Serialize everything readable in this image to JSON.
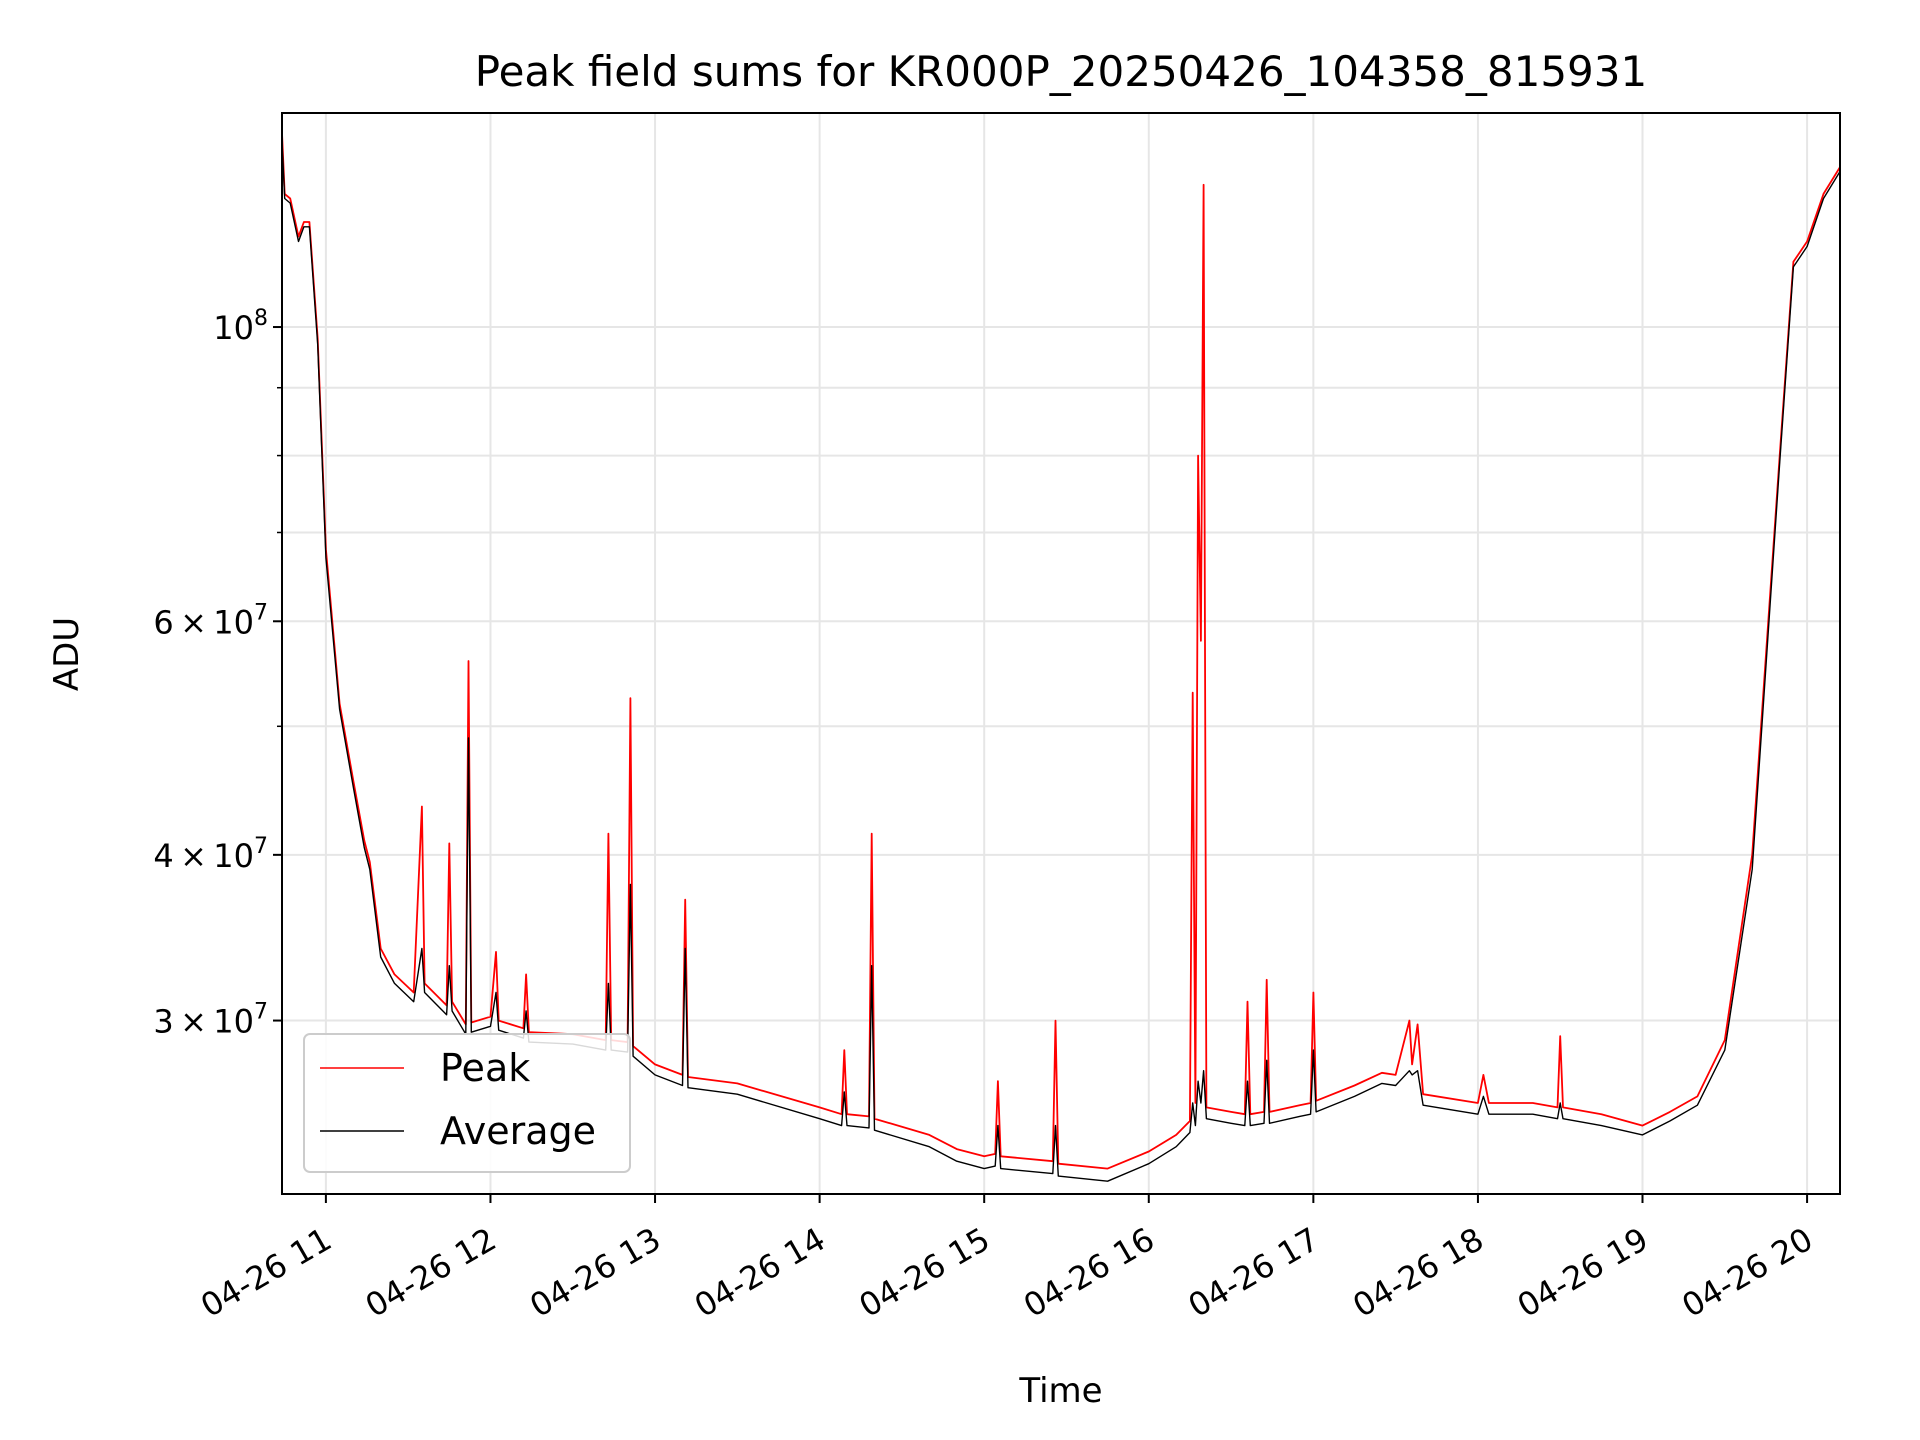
{
  "chart_data": {
    "type": "line",
    "title": "Peak field sums for KR000P_20250426_104358_815931",
    "xlabel": "Time",
    "ylabel": "ADU",
    "yscale": "log",
    "ylim": [
      22200000,
      145000000
    ],
    "xlim": [
      "2025-04-26 10:44",
      "2025-04-26 20:12"
    ],
    "grid": true,
    "legend_position": "lower-left",
    "x_ticks": [
      {
        "value": "2025-04-26 11:00",
        "label": "04-26 11"
      },
      {
        "value": "2025-04-26 12:00",
        "label": "04-26 12"
      },
      {
        "value": "2025-04-26 13:00",
        "label": "04-26 13"
      },
      {
        "value": "2025-04-26 14:00",
        "label": "04-26 14"
      },
      {
        "value": "2025-04-26 15:00",
        "label": "04-26 15"
      },
      {
        "value": "2025-04-26 16:00",
        "label": "04-26 16"
      },
      {
        "value": "2025-04-26 17:00",
        "label": "04-26 17"
      },
      {
        "value": "2025-04-26 18:00",
        "label": "04-26 18"
      },
      {
        "value": "2025-04-26 19:00",
        "label": "04-26 19"
      },
      {
        "value": "2025-04-26 20:00",
        "label": "04-26 20"
      }
    ],
    "y_ticks": [
      {
        "value": 30000000,
        "mantissa": "3",
        "times": "×",
        "base": "10",
        "exponent": "7"
      },
      {
        "value": 40000000,
        "mantissa": "4",
        "times": "×",
        "base": "10",
        "exponent": "7"
      },
      {
        "value": 60000000,
        "mantissa": "6",
        "times": "×",
        "base": "10",
        "exponent": "7"
      },
      {
        "value": 100000000,
        "mantissa": "",
        "times": "",
        "base": "10",
        "exponent": "8"
      }
    ],
    "y_minor_ticks": [
      50000000,
      70000000,
      80000000,
      90000000
    ],
    "series": [
      {
        "name": "Peak",
        "color": "#ff0000",
        "points": [
          [
            "2025-04-26 10:44",
            140000000
          ],
          [
            "2025-04-26 10:45",
            126000000
          ],
          [
            "2025-04-26 10:47",
            125000000
          ],
          [
            "2025-04-26 10:50",
            117000000
          ],
          [
            "2025-04-26 10:52",
            120000000
          ],
          [
            "2025-04-26 10:54",
            120000000
          ],
          [
            "2025-04-26 10:57",
            98000000
          ],
          [
            "2025-04-26 11:00",
            68000000
          ],
          [
            "2025-04-26 11:05",
            52000000
          ],
          [
            "2025-04-26 11:10",
            45500000
          ],
          [
            "2025-04-26 11:14",
            41000000
          ],
          [
            "2025-04-26 11:16",
            39500000
          ],
          [
            "2025-04-26 11:20",
            34000000
          ],
          [
            "2025-04-26 11:25",
            32500000
          ],
          [
            "2025-04-26 11:32",
            31500000
          ],
          [
            "2025-04-26 11:35",
            43500000
          ],
          [
            "2025-04-26 11:36",
            32000000
          ],
          [
            "2025-04-26 11:44",
            30800000
          ],
          [
            "2025-04-26 11:45",
            40800000
          ],
          [
            "2025-04-26 11:46",
            31000000
          ],
          [
            "2025-04-26 11:51",
            29800000
          ],
          [
            "2025-04-26 11:52",
            56000000
          ],
          [
            "2025-04-26 11:53",
            29900000
          ],
          [
            "2025-04-26 12:00",
            30200000
          ],
          [
            "2025-04-26 12:02",
            33800000
          ],
          [
            "2025-04-26 12:03",
            30000000
          ],
          [
            "2025-04-26 12:12",
            29600000
          ],
          [
            "2025-04-26 12:13",
            32500000
          ],
          [
            "2025-04-26 12:14",
            29400000
          ],
          [
            "2025-04-26 12:30",
            29300000
          ],
          [
            "2025-04-26 12:42",
            29000000
          ],
          [
            "2025-04-26 12:43",
            41500000
          ],
          [
            "2025-04-26 12:44",
            29000000
          ],
          [
            "2025-04-26 12:50",
            28900000
          ],
          [
            "2025-04-26 12:51",
            52500000
          ],
          [
            "2025-04-26 12:52",
            28700000
          ],
          [
            "2025-04-26 13:00",
            27800000
          ],
          [
            "2025-04-26 13:10",
            27300000
          ],
          [
            "2025-04-26 13:11",
            37000000
          ],
          [
            "2025-04-26 13:12",
            27200000
          ],
          [
            "2025-04-26 13:30",
            26900000
          ],
          [
            "2025-04-26 14:00",
            25800000
          ],
          [
            "2025-04-26 14:08",
            25500000
          ],
          [
            "2025-04-26 14:09",
            28500000
          ],
          [
            "2025-04-26 14:10",
            25500000
          ],
          [
            "2025-04-26 14:18",
            25400000
          ],
          [
            "2025-04-26 14:19",
            41500000
          ],
          [
            "2025-04-26 14:20",
            25300000
          ],
          [
            "2025-04-26 14:40",
            24600000
          ],
          [
            "2025-04-26 14:50",
            24000000
          ],
          [
            "2025-04-26 15:00",
            23700000
          ],
          [
            "2025-04-26 15:04",
            23800000
          ],
          [
            "2025-04-26 15:05",
            27000000
          ],
          [
            "2025-04-26 15:06",
            23700000
          ],
          [
            "2025-04-26 15:25",
            23500000
          ],
          [
            "2025-04-26 15:26",
            30000000
          ],
          [
            "2025-04-26 15:27",
            23400000
          ],
          [
            "2025-04-26 15:45",
            23200000
          ],
          [
            "2025-04-26 16:00",
            23900000
          ],
          [
            "2025-04-26 16:10",
            24600000
          ],
          [
            "2025-04-26 16:15",
            25200000
          ],
          [
            "2025-04-26 16:16",
            53000000
          ],
          [
            "2025-04-26 16:17",
            26000000
          ],
          [
            "2025-04-26 16:18",
            80000000
          ],
          [
            "2025-04-26 16:19",
            58000000
          ],
          [
            "2025-04-26 16:20",
            128000000
          ],
          [
            "2025-04-26 16:21",
            25800000
          ],
          [
            "2025-04-26 16:30",
            25600000
          ],
          [
            "2025-04-26 16:35",
            25500000
          ],
          [
            "2025-04-26 16:36",
            31000000
          ],
          [
            "2025-04-26 16:37",
            25500000
          ],
          [
            "2025-04-26 16:42",
            25600000
          ],
          [
            "2025-04-26 16:43",
            32200000
          ],
          [
            "2025-04-26 16:44",
            25600000
          ],
          [
            "2025-04-26 16:55",
            25900000
          ],
          [
            "2025-04-26 16:59",
            26000000
          ],
          [
            "2025-04-26 17:00",
            31500000
          ],
          [
            "2025-04-26 17:01",
            26100000
          ],
          [
            "2025-04-26 17:15",
            26800000
          ],
          [
            "2025-04-26 17:25",
            27400000
          ],
          [
            "2025-04-26 17:30",
            27300000
          ],
          [
            "2025-04-26 17:35",
            30000000
          ],
          [
            "2025-04-26 17:36",
            27800000
          ],
          [
            "2025-04-26 17:38",
            29800000
          ],
          [
            "2025-04-26 17:40",
            26400000
          ],
          [
            "2025-04-26 18:00",
            26000000
          ],
          [
            "2025-04-26 18:02",
            27300000
          ],
          [
            "2025-04-26 18:04",
            26000000
          ],
          [
            "2025-04-26 18:20",
            26000000
          ],
          [
            "2025-04-26 18:29",
            25800000
          ],
          [
            "2025-04-26 18:30",
            29200000
          ],
          [
            "2025-04-26 18:31",
            25800000
          ],
          [
            "2025-04-26 18:45",
            25500000
          ],
          [
            "2025-04-26 19:00",
            25000000
          ],
          [
            "2025-04-26 19:10",
            25600000
          ],
          [
            "2025-04-26 19:20",
            26300000
          ],
          [
            "2025-04-26 19:30",
            29000000
          ],
          [
            "2025-04-26 19:40",
            40000000
          ],
          [
            "2025-04-26 19:50",
            80000000
          ],
          [
            "2025-04-26 19:55",
            112000000
          ],
          [
            "2025-04-26 20:00",
            116000000
          ],
          [
            "2025-04-26 20:06",
            126000000
          ],
          [
            "2025-04-26 20:12",
            132000000
          ]
        ]
      },
      {
        "name": "Average",
        "color": "#000000",
        "points": [
          [
            "2025-04-26 10:44",
            138000000
          ],
          [
            "2025-04-26 10:45",
            125000000
          ],
          [
            "2025-04-26 10:47",
            124000000
          ],
          [
            "2025-04-26 10:50",
            116000000
          ],
          [
            "2025-04-26 10:52",
            119000000
          ],
          [
            "2025-04-26 10:54",
            119000000
          ],
          [
            "2025-04-26 10:57",
            97000000
          ],
          [
            "2025-04-26 11:00",
            67000000
          ],
          [
            "2025-04-26 11:05",
            51500000
          ],
          [
            "2025-04-26 11:10",
            45000000
          ],
          [
            "2025-04-26 11:14",
            40500000
          ],
          [
            "2025-04-26 11:16",
            39000000
          ],
          [
            "2025-04-26 11:20",
            33500000
          ],
          [
            "2025-04-26 11:25",
            32000000
          ],
          [
            "2025-04-26 11:32",
            31000000
          ],
          [
            "2025-04-26 11:35",
            34000000
          ],
          [
            "2025-04-26 11:36",
            31500000
          ],
          [
            "2025-04-26 11:44",
            30300000
          ],
          [
            "2025-04-26 11:45",
            33000000
          ],
          [
            "2025-04-26 11:46",
            30500000
          ],
          [
            "2025-04-26 11:51",
            29300000
          ],
          [
            "2025-04-26 11:52",
            49000000
          ],
          [
            "2025-04-26 11:53",
            29400000
          ],
          [
            "2025-04-26 12:00",
            29700000
          ],
          [
            "2025-04-26 12:02",
            31500000
          ],
          [
            "2025-04-26 12:03",
            29500000
          ],
          [
            "2025-04-26 12:12",
            29100000
          ],
          [
            "2025-04-26 12:13",
            30500000
          ],
          [
            "2025-04-26 12:14",
            28900000
          ],
          [
            "2025-04-26 12:30",
            28800000
          ],
          [
            "2025-04-26 12:42",
            28500000
          ],
          [
            "2025-04-26 12:43",
            32000000
          ],
          [
            "2025-04-26 12:44",
            28500000
          ],
          [
            "2025-04-26 12:50",
            28400000
          ],
          [
            "2025-04-26 12:51",
            38000000
          ],
          [
            "2025-04-26 12:52",
            28200000
          ],
          [
            "2025-04-26 13:00",
            27300000
          ],
          [
            "2025-04-26 13:10",
            26800000
          ],
          [
            "2025-04-26 13:11",
            34000000
          ],
          [
            "2025-04-26 13:12",
            26700000
          ],
          [
            "2025-04-26 13:30",
            26400000
          ],
          [
            "2025-04-26 14:00",
            25300000
          ],
          [
            "2025-04-26 14:08",
            25000000
          ],
          [
            "2025-04-26 14:09",
            26500000
          ],
          [
            "2025-04-26 14:10",
            25000000
          ],
          [
            "2025-04-26 14:18",
            24900000
          ],
          [
            "2025-04-26 14:19",
            33000000
          ],
          [
            "2025-04-26 14:20",
            24800000
          ],
          [
            "2025-04-26 14:40",
            24100000
          ],
          [
            "2025-04-26 14:50",
            23500000
          ],
          [
            "2025-04-26 15:00",
            23200000
          ],
          [
            "2025-04-26 15:04",
            23300000
          ],
          [
            "2025-04-26 15:05",
            25000000
          ],
          [
            "2025-04-26 15:06",
            23200000
          ],
          [
            "2025-04-26 15:25",
            23000000
          ],
          [
            "2025-04-26 15:26",
            25000000
          ],
          [
            "2025-04-26 15:27",
            22900000
          ],
          [
            "2025-04-26 15:45",
            22700000
          ],
          [
            "2025-04-26 16:00",
            23400000
          ],
          [
            "2025-04-26 16:10",
            24100000
          ],
          [
            "2025-04-26 16:15",
            24700000
          ],
          [
            "2025-04-26 16:16",
            26000000
          ],
          [
            "2025-04-26 16:17",
            25000000
          ],
          [
            "2025-04-26 16:18",
            27000000
          ],
          [
            "2025-04-26 16:19",
            26000000
          ],
          [
            "2025-04-26 16:20",
            27500000
          ],
          [
            "2025-04-26 16:21",
            25300000
          ],
          [
            "2025-04-26 16:30",
            25100000
          ],
          [
            "2025-04-26 16:35",
            25000000
          ],
          [
            "2025-04-26 16:36",
            27000000
          ],
          [
            "2025-04-26 16:37",
            25000000
          ],
          [
            "2025-04-26 16:42",
            25100000
          ],
          [
            "2025-04-26 16:43",
            28000000
          ],
          [
            "2025-04-26 16:44",
            25100000
          ],
          [
            "2025-04-26 16:55",
            25400000
          ],
          [
            "2025-04-26 16:59",
            25500000
          ],
          [
            "2025-04-26 17:00",
            28500000
          ],
          [
            "2025-04-26 17:01",
            25600000
          ],
          [
            "2025-04-26 17:15",
            26300000
          ],
          [
            "2025-04-26 17:25",
            26900000
          ],
          [
            "2025-04-26 17:30",
            26800000
          ],
          [
            "2025-04-26 17:35",
            27500000
          ],
          [
            "2025-04-26 17:36",
            27300000
          ],
          [
            "2025-04-26 17:38",
            27500000
          ],
          [
            "2025-04-26 17:40",
            25900000
          ],
          [
            "2025-04-26 18:00",
            25500000
          ],
          [
            "2025-04-26 18:02",
            26300000
          ],
          [
            "2025-04-26 18:04",
            25500000
          ],
          [
            "2025-04-26 18:20",
            25500000
          ],
          [
            "2025-04-26 18:29",
            25300000
          ],
          [
            "2025-04-26 18:30",
            26000000
          ],
          [
            "2025-04-26 18:31",
            25300000
          ],
          [
            "2025-04-26 18:45",
            25000000
          ],
          [
            "2025-04-26 19:00",
            24600000
          ],
          [
            "2025-04-26 19:10",
            25200000
          ],
          [
            "2025-04-26 19:20",
            25900000
          ],
          [
            "2025-04-26 19:30",
            28500000
          ],
          [
            "2025-04-26 19:40",
            39000000
          ],
          [
            "2025-04-26 19:50",
            79000000
          ],
          [
            "2025-04-26 19:55",
            111000000
          ],
          [
            "2025-04-26 20:00",
            115000000
          ],
          [
            "2025-04-26 20:06",
            125000000
          ],
          [
            "2025-04-26 20:12",
            131000000
          ]
        ]
      }
    ]
  }
}
